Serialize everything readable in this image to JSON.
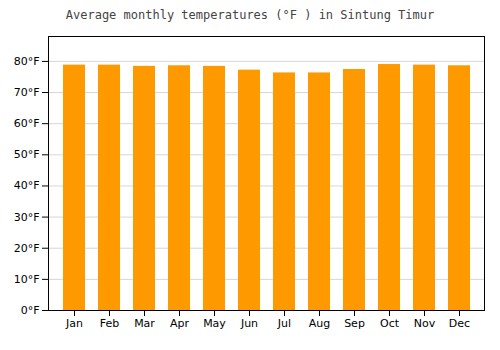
{
  "chart_data": {
    "type": "bar",
    "title": "Average monthly temperatures (°F ) in Sintung Timur",
    "categories": [
      "Jan",
      "Feb",
      "Mar",
      "Apr",
      "May",
      "Jun",
      "Jul",
      "Aug",
      "Sep",
      "Oct",
      "Nov",
      "Dec"
    ],
    "values": [
      78.8,
      78.8,
      78.4,
      78.6,
      78.4,
      77.2,
      76.3,
      76.3,
      77.4,
      79.0,
      78.8,
      78.6
    ],
    "color": "#FF9900",
    "ylim": [
      0,
      88
    ],
    "yticks": [
      {
        "value": 0,
        "label": "0°F"
      },
      {
        "value": 10,
        "label": "10°F"
      },
      {
        "value": 20,
        "label": "20°F"
      },
      {
        "value": 30,
        "label": "30°F"
      },
      {
        "value": 40,
        "label": "40°F"
      },
      {
        "value": 50,
        "label": "50°F"
      },
      {
        "value": 60,
        "label": "60°F"
      },
      {
        "value": 70,
        "label": "70°F"
      },
      {
        "value": 80,
        "label": "80°F"
      }
    ],
    "grid": true
  }
}
